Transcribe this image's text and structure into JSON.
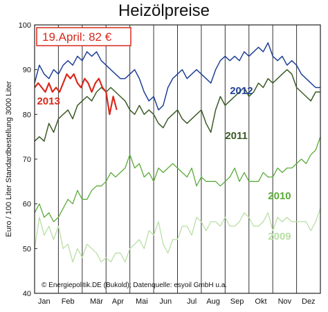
{
  "chart_data": {
    "type": "line",
    "title": "Heizölpreise",
    "ylabel": "Euro / 100 Liter Standardbestellung 3000 Liter",
    "xlabel": "",
    "ylim": [
      40,
      100
    ],
    "yticks": [
      40,
      50,
      60,
      70,
      80,
      90,
      100
    ],
    "xlim": [
      0,
      12
    ],
    "x_ticks": [
      {
        "label": "Jan",
        "x": 0.4
      },
      {
        "label": "Feb",
        "x": 1.4
      },
      {
        "label": "Mär",
        "x": 2.6
      },
      {
        "label": "Apr",
        "x": 3.5
      },
      {
        "label": "Mai",
        "x": 4.5
      },
      {
        "label": "Jun",
        "x": 5.5
      },
      {
        "label": "Jul",
        "x": 6.6
      },
      {
        "label": "Aug",
        "x": 7.5
      },
      {
        "label": "Sep",
        "x": 8.5
      },
      {
        "label": "Okt",
        "x": 9.5
      },
      {
        "label": "Nov",
        "x": 10.5
      },
      {
        "label": "Dez",
        "x": 11.5
      }
    ],
    "grid_x": [
      1,
      2,
      3,
      4,
      5,
      6,
      7,
      8,
      9,
      10,
      11
    ],
    "annotation": "19.April: 82 €",
    "credit": "© Energiepolitik.DE (Bukold); Datenquelle: esyoil GmbH u.a.",
    "series": [
      {
        "name": "2009",
        "color": "#b9dfa5",
        "width": 1.3,
        "label_pos": [
          9.8,
          52
        ],
        "x": [
          0,
          0.2,
          0.4,
          0.6,
          0.8,
          1.0,
          1.2,
          1.4,
          1.6,
          1.8,
          2.0,
          2.2,
          2.4,
          2.6,
          2.8,
          3.0,
          3.2,
          3.4,
          3.6,
          3.8,
          4.0,
          4.2,
          4.4,
          4.6,
          4.8,
          5.0,
          5.2,
          5.4,
          5.6,
          5.8,
          6.0,
          6.2,
          6.4,
          6.6,
          6.8,
          7.0,
          7.2,
          7.4,
          7.6,
          7.8,
          8.0,
          8.2,
          8.4,
          8.6,
          8.8,
          9.0,
          9.2,
          9.4,
          9.6,
          9.8,
          10.0,
          10.2,
          10.4,
          10.6,
          10.8,
          11.0,
          11.2,
          11.4,
          11.6,
          11.8,
          12.0
        ],
        "values": [
          50,
          57,
          53,
          55,
          52,
          55,
          50,
          51,
          47,
          50,
          48,
          51,
          50,
          49,
          47,
          48,
          47,
          49,
          49,
          47,
          50,
          51,
          52,
          50,
          54,
          53,
          56,
          51,
          49,
          52,
          52,
          55,
          55,
          53,
          57,
          56,
          54,
          56,
          56,
          55,
          57,
          55,
          55,
          56,
          58,
          57,
          55,
          55,
          56,
          58,
          54,
          57,
          56,
          57,
          56,
          56,
          56,
          56,
          54,
          56,
          59
        ]
      },
      {
        "name": "2010",
        "color": "#5aab38",
        "width": 1.3,
        "label_pos": [
          9.8,
          61
        ],
        "x": [
          0,
          0.2,
          0.4,
          0.6,
          0.8,
          1.0,
          1.2,
          1.4,
          1.6,
          1.8,
          2.0,
          2.2,
          2.4,
          2.6,
          2.8,
          3.0,
          3.2,
          3.4,
          3.6,
          3.8,
          4.0,
          4.2,
          4.4,
          4.6,
          4.8,
          5.0,
          5.2,
          5.4,
          5.6,
          5.8,
          6.0,
          6.2,
          6.4,
          6.6,
          6.8,
          7.0,
          7.2,
          7.4,
          7.6,
          7.8,
          8.0,
          8.2,
          8.4,
          8.6,
          8.8,
          9.0,
          9.2,
          9.4,
          9.6,
          9.8,
          10.0,
          10.2,
          10.4,
          10.6,
          10.8,
          11.0,
          11.2,
          11.4,
          11.6,
          11.8,
          12.0
        ],
        "values": [
          58,
          60,
          57,
          58,
          56,
          57,
          59,
          61,
          60,
          63,
          61,
          61,
          63,
          64,
          64,
          65,
          67,
          66,
          67,
          68,
          71,
          68,
          69,
          66,
          67,
          65,
          68,
          67,
          68,
          69,
          68,
          67,
          66,
          68,
          64,
          66,
          65,
          65,
          65,
          64,
          65,
          66,
          68,
          65,
          67,
          65,
          65,
          65,
          67,
          66,
          66,
          68,
          67,
          68,
          68,
          69,
          70,
          69,
          71,
          72,
          75
        ]
      },
      {
        "name": "2011",
        "color": "#3a5a25",
        "width": 1.5,
        "label_pos": [
          8.0,
          74.5
        ],
        "x": [
          0,
          0.2,
          0.4,
          0.6,
          0.8,
          1.0,
          1.2,
          1.4,
          1.6,
          1.8,
          2.0,
          2.2,
          2.4,
          2.6,
          2.8,
          3.0,
          3.2,
          3.4,
          3.6,
          3.8,
          4.0,
          4.2,
          4.4,
          4.6,
          4.8,
          5.0,
          5.2,
          5.4,
          5.6,
          5.8,
          6.0,
          6.2,
          6.4,
          6.6,
          6.8,
          7.0,
          7.2,
          7.4,
          7.6,
          7.8,
          8.0,
          8.2,
          8.4,
          8.6,
          8.8,
          9.0,
          9.2,
          9.4,
          9.6,
          9.8,
          10.0,
          10.2,
          10.4,
          10.6,
          10.8,
          11.0,
          11.2,
          11.4,
          11.6,
          11.8,
          12.0
        ],
        "values": [
          74,
          75,
          74,
          78,
          76,
          79,
          80,
          81,
          79,
          82,
          83,
          84,
          83,
          85,
          86,
          85,
          86,
          85,
          84,
          83,
          81,
          80,
          82,
          80,
          81,
          80,
          78,
          77,
          79,
          80,
          81,
          79,
          78,
          79,
          80,
          81,
          78,
          76,
          81,
          84,
          82,
          83,
          84,
          85,
          86,
          84,
          85,
          87,
          86,
          88,
          87,
          88,
          89,
          90,
          89,
          86,
          85,
          84,
          83,
          85,
          85
        ]
      },
      {
        "name": "2012",
        "color": "#1f3f98",
        "width": 1.5,
        "label_pos": [
          8.2,
          84.5
        ],
        "x": [
          0,
          0.2,
          0.4,
          0.6,
          0.8,
          1.0,
          1.2,
          1.4,
          1.6,
          1.8,
          2.0,
          2.2,
          2.4,
          2.6,
          2.8,
          3.0,
          3.2,
          3.4,
          3.6,
          3.8,
          4.0,
          4.2,
          4.4,
          4.6,
          4.8,
          5.0,
          5.2,
          5.4,
          5.6,
          5.8,
          6.0,
          6.2,
          6.4,
          6.6,
          6.8,
          7.0,
          7.2,
          7.4,
          7.6,
          7.8,
          8.0,
          8.2,
          8.4,
          8.6,
          8.8,
          9.0,
          9.2,
          9.4,
          9.6,
          9.8,
          10.0,
          10.2,
          10.4,
          10.6,
          10.8,
          11.0,
          11.2,
          11.4,
          11.6,
          11.8,
          12.0
        ],
        "values": [
          87,
          91,
          89,
          88,
          90,
          89,
          91,
          92,
          91,
          93,
          92,
          94,
          93,
          94,
          92,
          91,
          90,
          89,
          88,
          88,
          89,
          90,
          88,
          85,
          83,
          84,
          81,
          82,
          86,
          88,
          89,
          90,
          88,
          89,
          90,
          89,
          88,
          87,
          90,
          92,
          93,
          92,
          93,
          92,
          94,
          93,
          94,
          95,
          94,
          96,
          93,
          92,
          93,
          91,
          92,
          91,
          89,
          88,
          87,
          86,
          86
        ]
      },
      {
        "name": "2013",
        "color": "#d8291c",
        "width": 2.2,
        "label_pos": [
          0.1,
          82.2
        ],
        "x": [
          0,
          0.15,
          0.3,
          0.45,
          0.6,
          0.75,
          0.9,
          1.05,
          1.2,
          1.35,
          1.5,
          1.65,
          1.8,
          1.95,
          2.1,
          2.25,
          2.4,
          2.55,
          2.7,
          2.85,
          3.0,
          3.15,
          3.3,
          3.45
        ],
        "values": [
          86,
          87,
          86,
          85,
          87,
          85,
          86,
          85,
          87,
          89,
          88,
          89,
          87,
          86,
          88,
          87,
          85,
          87,
          88,
          86,
          85,
          80,
          84,
          81
        ]
      }
    ]
  }
}
